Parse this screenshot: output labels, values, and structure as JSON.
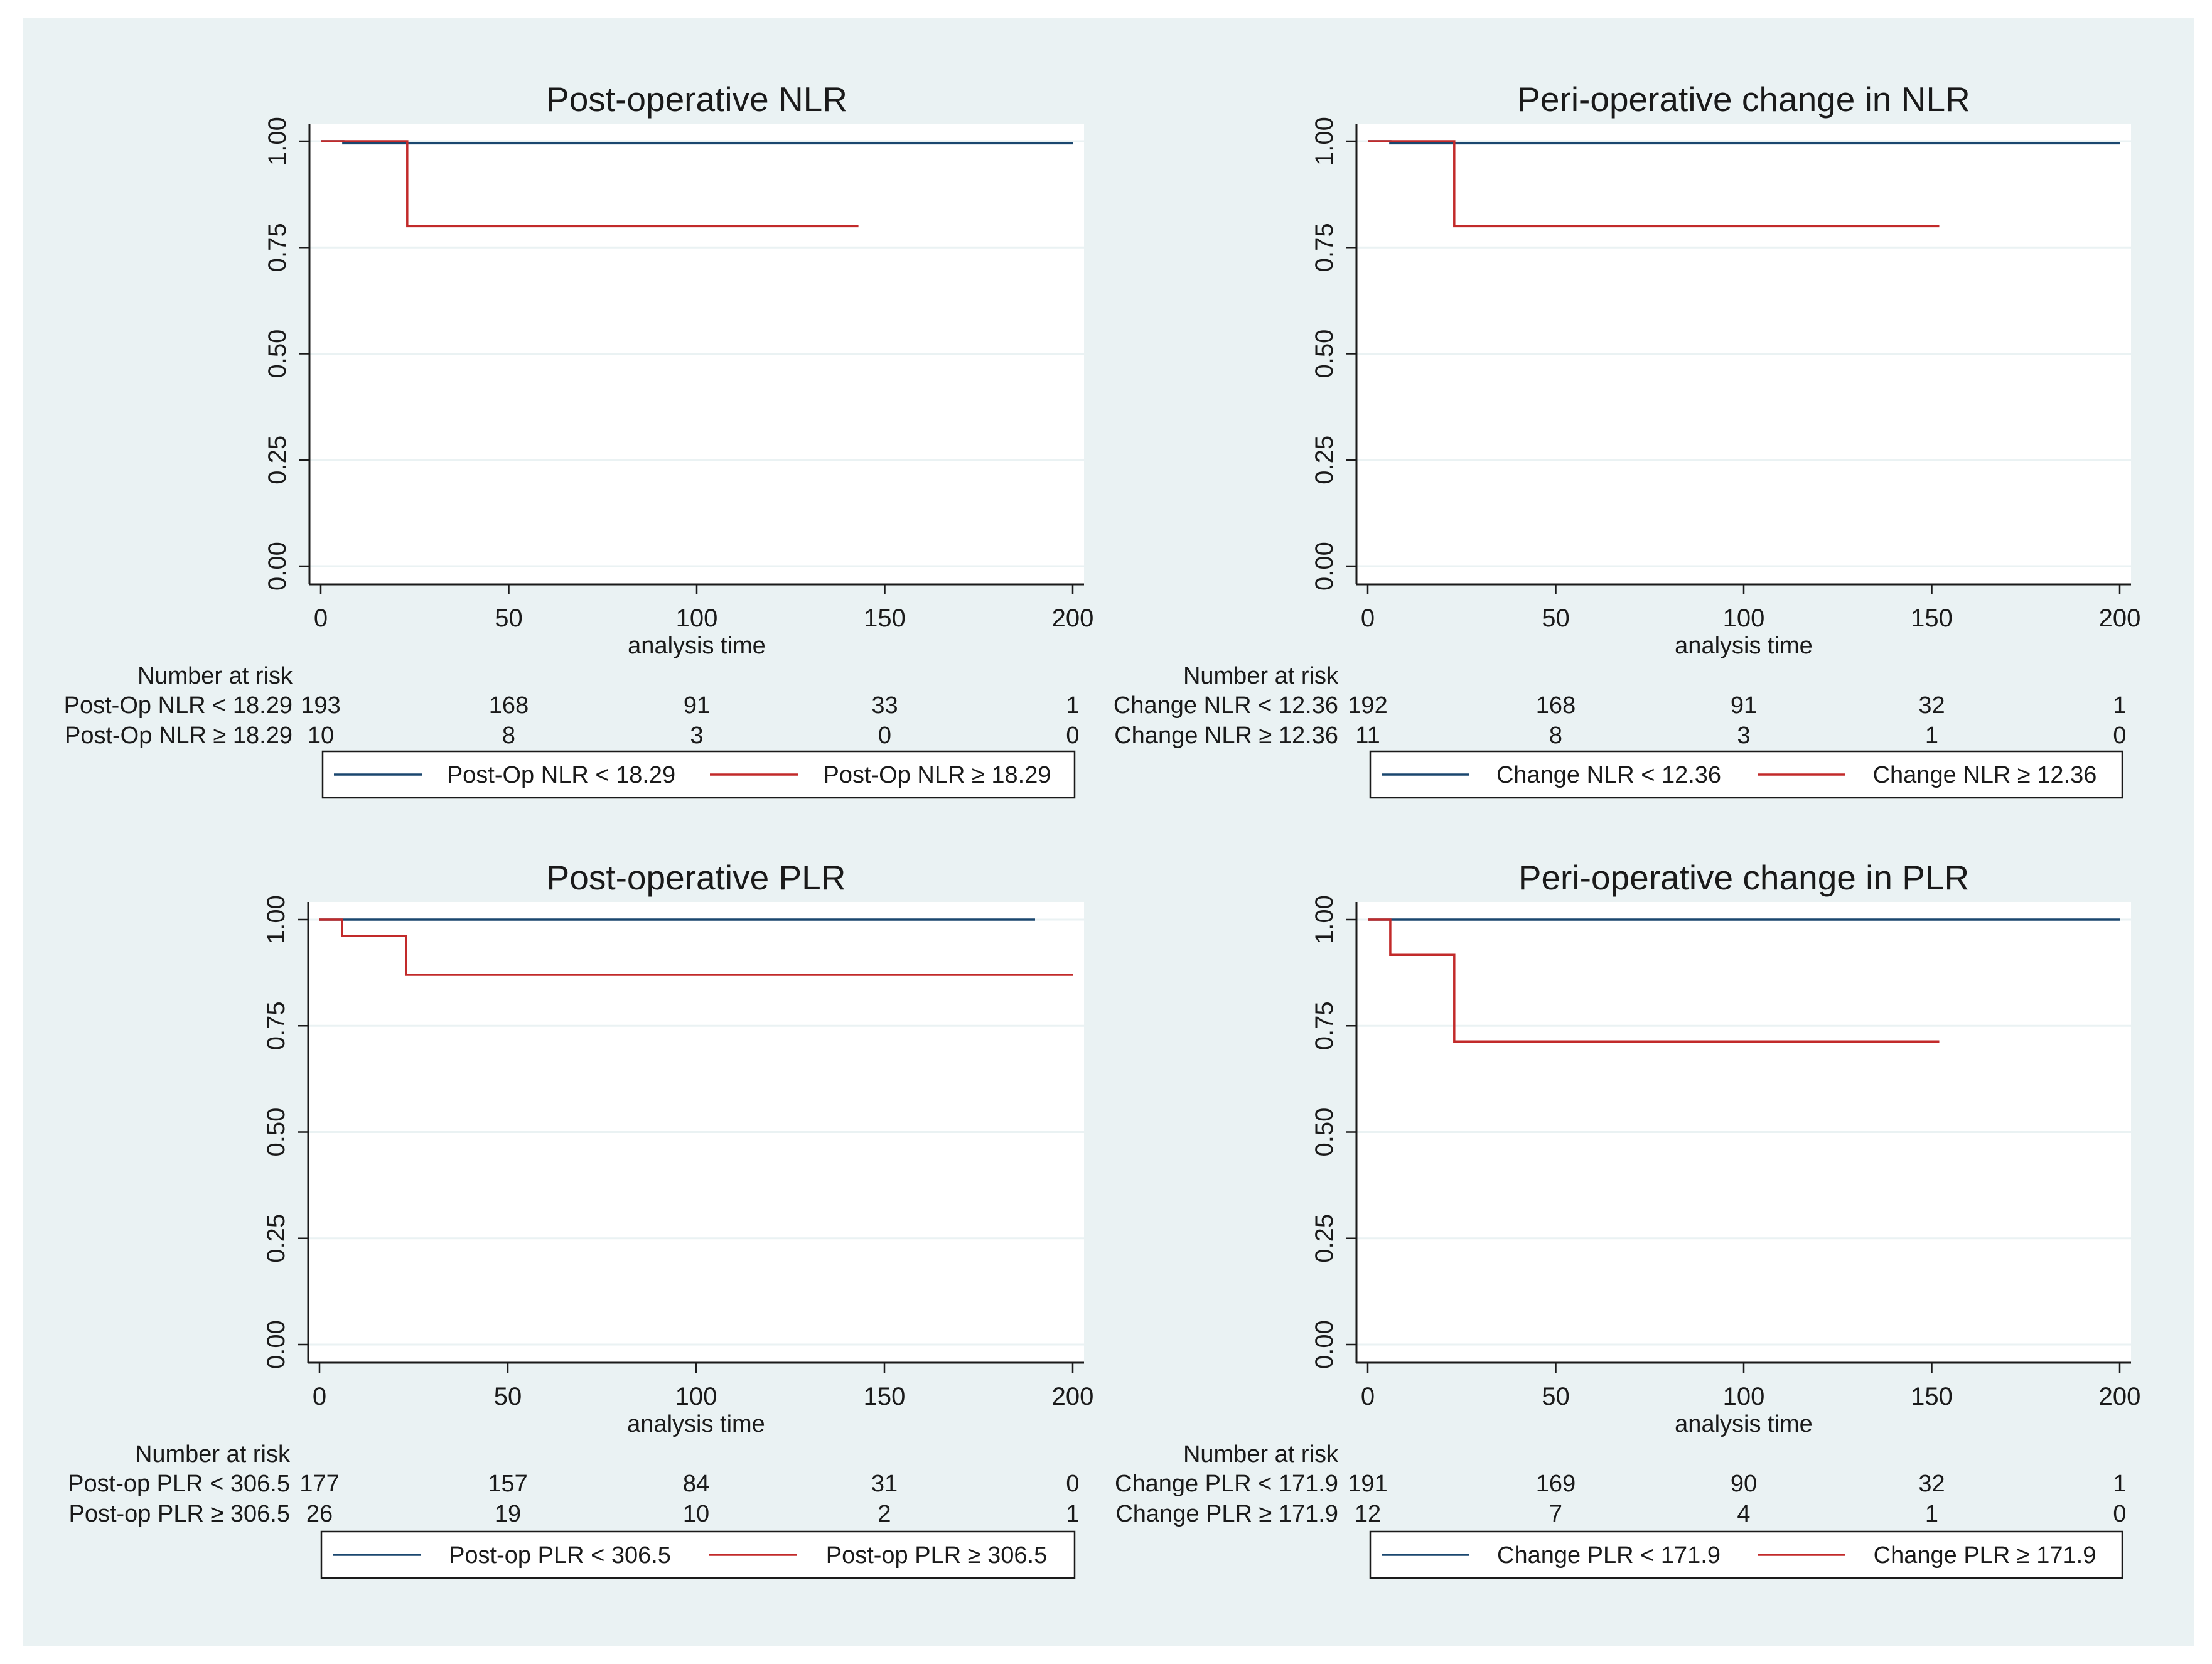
{
  "colors": {
    "background": "#ffffff",
    "panel_background": "#eaf2f3",
    "plot_background": "#ffffff",
    "grid": "#eaf2f3",
    "series_low": "#1a476f",
    "series_high": "#c22a2a",
    "text": "#1a1a1a"
  },
  "chart_data": [
    {
      "type": "line",
      "subtype": "kaplan-meier",
      "title": "Post-operative NLR",
      "xlabel": "analysis time",
      "ylabel": "",
      "xlim": [
        0,
        200
      ],
      "ylim": [
        0,
        1
      ],
      "xticks": [
        "0",
        "50",
        "100",
        "150",
        "200"
      ],
      "yticks": [
        "0.00",
        "0.25",
        "0.50",
        "0.75",
        "1.00"
      ],
      "grid": true,
      "series": [
        {
          "name": "Post-Op NLR < 18.29",
          "color": "#1a476f",
          "steps": [
            [
              0,
              1.0
            ],
            [
              6,
              1.0
            ],
            [
              6,
              0.995
            ],
            [
              200,
              0.995
            ]
          ]
        },
        {
          "name": "Post-Op NLR ≥ 18.29",
          "color": "#c22a2a",
          "steps": [
            [
              0,
              1.0
            ],
            [
              23,
              1.0
            ],
            [
              23,
              0.8
            ],
            [
              143,
              0.8
            ]
          ]
        }
      ],
      "risk_table": {
        "header": "Number at risk",
        "rows": [
          {
            "label": "Post-Op NLR < 18.29",
            "values": [
              "193",
              "168",
              "91",
              "33",
              "1"
            ]
          },
          {
            "label": "Post-Op NLR ≥ 18.29",
            "values": [
              "10",
              "8",
              "3",
              "0",
              "0"
            ]
          }
        ]
      },
      "legend": [
        "Post-Op NLR < 18.29",
        "Post-Op NLR ≥ 18.29"
      ]
    },
    {
      "type": "line",
      "subtype": "kaplan-meier",
      "title": "Peri-operative change in NLR",
      "xlabel": "analysis time",
      "ylabel": "",
      "xlim": [
        0,
        200
      ],
      "ylim": [
        0,
        1
      ],
      "xticks": [
        "0",
        "50",
        "100",
        "150",
        "200"
      ],
      "yticks": [
        "0.00",
        "0.25",
        "0.50",
        "0.75",
        "1.00"
      ],
      "grid": true,
      "series": [
        {
          "name": "Change NLR < 12.36",
          "color": "#1a476f",
          "steps": [
            [
              0,
              1.0
            ],
            [
              6,
              1.0
            ],
            [
              6,
              0.995
            ],
            [
              200,
              0.995
            ]
          ]
        },
        {
          "name": "Change NLR ≥ 12.36",
          "color": "#c22a2a",
          "steps": [
            [
              0,
              1.0
            ],
            [
              23,
              1.0
            ],
            [
              23,
              0.8
            ],
            [
              152,
              0.8
            ]
          ]
        }
      ],
      "risk_table": {
        "header": "Number at risk",
        "rows": [
          {
            "label": "Change NLR < 12.36",
            "values": [
              "192",
              "168",
              "91",
              "32",
              "1"
            ]
          },
          {
            "label": "Change NLR ≥ 12.36",
            "values": [
              "11",
              "8",
              "3",
              "1",
              "0"
            ]
          }
        ]
      },
      "legend": [
        "Change NLR < 12.36",
        "Change NLR ≥ 12.36"
      ]
    },
    {
      "type": "line",
      "subtype": "kaplan-meier",
      "title": "Post-operative PLR",
      "xlabel": "analysis time",
      "ylabel": "",
      "xlim": [
        0,
        200
      ],
      "ylim": [
        0,
        1
      ],
      "xticks": [
        "0",
        "50",
        "100",
        "150",
        "200"
      ],
      "yticks": [
        "0.00",
        "0.25",
        "0.50",
        "0.75",
        "1.00"
      ],
      "grid": true,
      "series": [
        {
          "name": "Post-op PLR < 306.5",
          "color": "#1a476f",
          "steps": [
            [
              0,
              1.0
            ],
            [
              190,
              1.0
            ]
          ]
        },
        {
          "name": "Post-op PLR ≥ 306.5",
          "color": "#c22a2a",
          "steps": [
            [
              0,
              1.0
            ],
            [
              6,
              1.0
            ],
            [
              6,
              0.962
            ],
            [
              23,
              0.962
            ],
            [
              23,
              0.87
            ],
            [
              200,
              0.87
            ]
          ]
        }
      ],
      "risk_table": {
        "header": "Number at risk",
        "rows": [
          {
            "label": "Post-op PLR < 306.5",
            "values": [
              "177",
              "157",
              "84",
              "31",
              "0"
            ]
          },
          {
            "label": "Post-op PLR ≥ 306.5",
            "values": [
              "26",
              "19",
              "10",
              "2",
              "1"
            ]
          }
        ]
      },
      "legend": [
        "Post-op PLR < 306.5",
        "Post-op PLR ≥ 306.5"
      ]
    },
    {
      "type": "line",
      "subtype": "kaplan-meier",
      "title": "Peri-operative change in PLR",
      "xlabel": "analysis time",
      "ylabel": "",
      "xlim": [
        0,
        200
      ],
      "ylim": [
        0,
        1
      ],
      "xticks": [
        "0",
        "50",
        "100",
        "150",
        "200"
      ],
      "yticks": [
        "0.00",
        "0.25",
        "0.50",
        "0.75",
        "1.00"
      ],
      "grid": true,
      "series": [
        {
          "name": "Change PLR < 171.9",
          "color": "#1a476f",
          "steps": [
            [
              0,
              1.0
            ],
            [
              200,
              1.0
            ]
          ]
        },
        {
          "name": "Change PLR ≥ 171.9",
          "color": "#c22a2a",
          "steps": [
            [
              0,
              1.0
            ],
            [
              6,
              1.0
            ],
            [
              6,
              0.917
            ],
            [
              23,
              0.917
            ],
            [
              23,
              0.713
            ],
            [
              152,
              0.713
            ]
          ]
        }
      ],
      "risk_table": {
        "header": "Number at risk",
        "rows": [
          {
            "label": "Change PLR < 171.9",
            "values": [
              "191",
              "169",
              "90",
              "32",
              "1"
            ]
          },
          {
            "label": "Change PLR ≥ 171.9",
            "values": [
              "12",
              "7",
              "4",
              "1",
              "0"
            ]
          }
        ]
      },
      "legend": [
        "Change PLR < 171.9",
        "Change PLR ≥ 171.9"
      ]
    }
  ]
}
